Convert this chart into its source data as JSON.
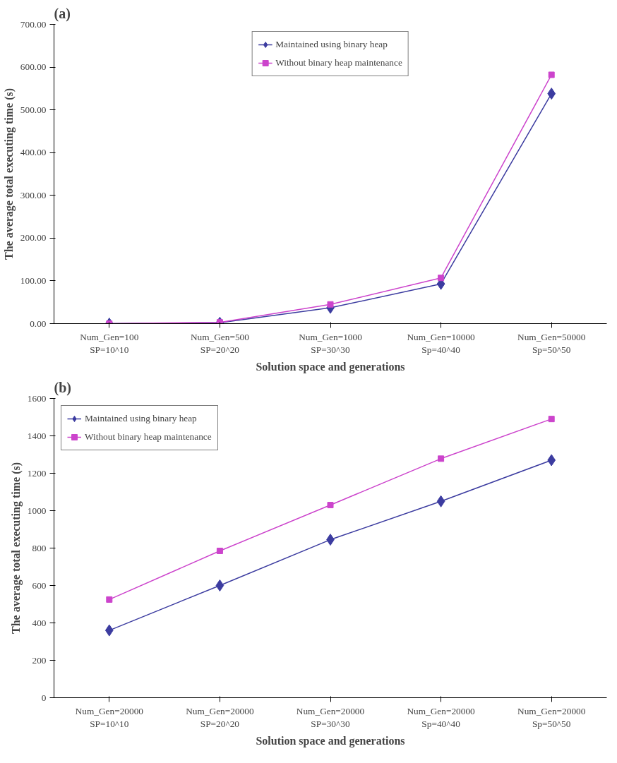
{
  "chart_data": [
    {
      "type": "line",
      "title": "(a)",
      "xlabel": "Solution space and generations",
      "ylabel": "The average total executing time (s)",
      "categories": [
        "Num_Gen=100\nSP=10^10",
        "Num_Gen=500\nSP=20^20",
        "Num_Gen=1000\nSP=30^30",
        "Num_Gen=10000\nSp=40^40",
        "Num_Gen=50000\nSp=50^50"
      ],
      "series": [
        {
          "name": "Maintained using binary heap",
          "color": "#3c3ca0",
          "marker": "diamond",
          "values": [
            0,
            2,
            37,
            93,
            538
          ]
        },
        {
          "name": "Without binary heap maintenance",
          "color": "#cc44cc",
          "marker": "square",
          "values": [
            0,
            3,
            45,
            107,
            582
          ]
        }
      ],
      "ylim": [
        0,
        700
      ],
      "yticks": [
        {
          "value": 0,
          "label": "0.00"
        },
        {
          "value": 100,
          "label": "100.00"
        },
        {
          "value": 200,
          "label": "200.00"
        },
        {
          "value": 300,
          "label": "300.00"
        },
        {
          "value": 400,
          "label": "400.00"
        },
        {
          "value": 500,
          "label": "500.00"
        },
        {
          "value": 600,
          "label": "600.00"
        },
        {
          "value": 700,
          "label": "700.00"
        }
      ],
      "grid": false,
      "legend": "top"
    },
    {
      "type": "line",
      "title": "(b)",
      "xlabel": "Solution space and generations",
      "ylabel": "The average total executing time (s)",
      "categories": [
        "Num_Gen=20000\nSP=10^10",
        "Num_Gen=20000\nSP=20^20",
        "Num_Gen=20000\nSP=30^30",
        "Num_Gen=20000\nSp=40^40",
        "Num_Gen=20000\nSp=50^50"
      ],
      "series": [
        {
          "name": "Maintained using binary heap",
          "color": "#3c3ca0",
          "marker": "diamond",
          "values": [
            360,
            600,
            845,
            1050,
            1270
          ]
        },
        {
          "name": "Without binary heap maintenance",
          "color": "#cc44cc",
          "marker": "square",
          "values": [
            525,
            785,
            1030,
            1278,
            1490
          ]
        }
      ],
      "ylim": [
        0,
        1600
      ],
      "yticks": [
        0,
        200,
        400,
        600,
        800,
        1000,
        1200,
        1400,
        1600
      ],
      "grid": false,
      "legend": "top left"
    }
  ]
}
